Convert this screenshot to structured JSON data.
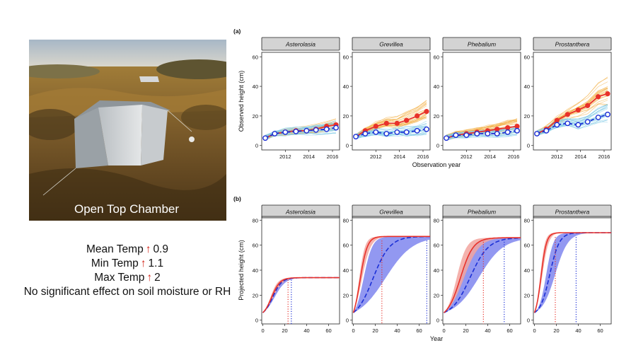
{
  "photo": {
    "caption": "Open Top Chamber"
  },
  "effects": [
    {
      "label": "Mean Temp",
      "value": "0.9",
      "arrow": "↑"
    },
    {
      "label": "Min Temp",
      "value": "1.1",
      "arrow": "↑"
    },
    {
      "label": "Max Temp",
      "value": "2",
      "arrow": "↑"
    }
  ],
  "effects_note": "No significant effect on soil moisture or RH",
  "colors": {
    "warmed": "#e8312a",
    "control": "#1b2fd6",
    "warmed_band": "#f2a49f",
    "control_band": "#7f86ee",
    "warmed_lines": "#f3b14a",
    "control_lines": "#7fc9e6",
    "strip": "#d3d3d3"
  },
  "chart_data": [
    {
      "panel": "(a)",
      "type": "line",
      "ylabel": "Observed height (cm)",
      "xlabel": "Observation year",
      "xlim": [
        2010,
        2016.6
      ],
      "ylim": [
        -3,
        63
      ],
      "xticks": [
        2012,
        2014,
        2016
      ],
      "yticks": [
        0,
        20,
        40,
        60
      ],
      "facets": [
        {
          "title": "Asterolasia",
          "x": [
            2010.3,
            2011.1,
            2012.0,
            2012.9,
            2013.8,
            2014.6,
            2015.5,
            2016.3
          ],
          "series": [
            {
              "group": "warmed",
              "values": [
                5,
                8,
                9,
                10,
                10,
                11,
                13,
                14
              ]
            },
            {
              "group": "control",
              "values": [
                5,
                8,
                9,
                9.5,
                10,
                10.5,
                11,
                12
              ]
            }
          ]
        },
        {
          "title": "Grevillea",
          "x": [
            2010.3,
            2011.1,
            2012.0,
            2012.9,
            2013.8,
            2014.6,
            2015.5,
            2016.3
          ],
          "series": [
            {
              "group": "warmed",
              "values": [
                6,
                10,
                13,
                15,
                15,
                17,
                20,
                23
              ]
            },
            {
              "group": "control",
              "values": [
                6,
                8,
                9,
                8,
                9,
                9,
                10,
                11
              ]
            }
          ]
        },
        {
          "title": "Phebalium",
          "x": [
            2010.3,
            2011.1,
            2012.0,
            2012.9,
            2013.8,
            2014.6,
            2015.5,
            2016.3
          ],
          "series": [
            {
              "group": "warmed",
              "values": [
                5,
                7,
                8,
                9,
                10,
                11,
                12,
                13
              ]
            },
            {
              "group": "control",
              "values": [
                5,
                7,
                7,
                8,
                8,
                8,
                9,
                10
              ]
            }
          ]
        },
        {
          "title": "Prostanthera",
          "x": [
            2010.3,
            2011.1,
            2012.0,
            2012.9,
            2013.8,
            2014.6,
            2015.5,
            2016.3
          ],
          "series": [
            {
              "group": "warmed",
              "values": [
                8,
                11,
                17,
                21,
                24,
                27,
                33,
                35
              ]
            },
            {
              "group": "control",
              "values": [
                8,
                10,
                14,
                15,
                14,
                16,
                19,
                21
              ]
            }
          ]
        }
      ]
    },
    {
      "panel": "(b)",
      "type": "line",
      "ylabel": "Projected height (cm)",
      "xlabel": "Year",
      "xlim": [
        -1,
        70
      ],
      "ylim": [
        -3,
        83
      ],
      "xticks": [
        0,
        20,
        40,
        60
      ],
      "yticks": [
        0,
        20,
        40,
        60,
        80
      ],
      "facets": [
        {
          "title": "Asterolasia",
          "asymptote": 34,
          "warmed": {
            "k": 0.26,
            "t0": 8,
            "band_low_k": 0.22,
            "band_high_k": 0.3,
            "threshold_year": 23
          },
          "control": {
            "k": 0.24,
            "t0": 9,
            "band_low_k": 0.2,
            "band_high_k": 0.28,
            "threshold_year": 26
          }
        },
        {
          "title": "Grevillea",
          "asymptote": 67,
          "warmed": {
            "k": 0.3,
            "t0": 6,
            "band_low_k": 0.24,
            "band_high_k": 0.36,
            "threshold_year": 26
          },
          "control": {
            "k": 0.13,
            "t0": 18,
            "band_low_k": 0.08,
            "band_high_k": 0.25,
            "threshold_year": 67
          }
        },
        {
          "title": "Phebalium",
          "asymptote": 66,
          "warmed": {
            "k": 0.17,
            "t0": 15,
            "band_low_k": 0.14,
            "band_high_k": 0.22,
            "threshold_year": 36
          },
          "control": {
            "k": 0.12,
            "t0": 24,
            "band_low_k": 0.09,
            "band_high_k": 0.18,
            "threshold_year": 55
          }
        },
        {
          "title": "Prostanthera",
          "asymptote": 70,
          "warmed": {
            "k": 0.4,
            "t0": 6,
            "band_low_k": 0.34,
            "band_high_k": 0.46,
            "threshold_year": 19
          },
          "control": {
            "k": 0.23,
            "t0": 14,
            "band_low_k": 0.17,
            "band_high_k": 0.3,
            "threshold_year": 38
          }
        }
      ]
    }
  ]
}
